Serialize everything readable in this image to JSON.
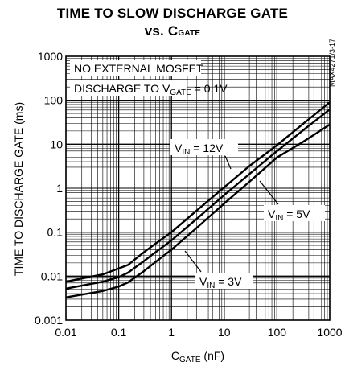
{
  "chart_data": {
    "type": "line",
    "title_line1": "TIME TO SLOW DISCHARGE GATE",
    "title_line2_prefix": "vs. C",
    "title_line2_sub": "GATE",
    "xlabel_main": "C",
    "xlabel_sub": "GATE",
    "xlabel_unit": " (nF)",
    "ylabel": "TIME TO DISCHARGE GATE (ms)",
    "xscale": "log",
    "yscale": "log",
    "xlim": [
      0.01,
      1000
    ],
    "ylim": [
      0.001,
      1000
    ],
    "grid": true,
    "x_tick_labels": [
      "0.01",
      "0.1",
      "1",
      "10",
      "100",
      "1000"
    ],
    "y_tick_labels": [
      "0.001",
      "0.01",
      "0.1",
      "1",
      "10",
      "100",
      "1000"
    ],
    "notes": [
      "NO EXTERNAL MOSFET",
      "DISCHARGE TO V",
      "GATE",
      " = 0.1V"
    ],
    "watermark": "MAX4271/3-17",
    "series": [
      {
        "name": "VIN = 12V",
        "label_main": "V",
        "label_sub": "IN",
        "label_rest": " = 12V",
        "x": [
          0.01,
          0.05,
          0.1,
          0.15,
          0.3,
          0.5,
          1,
          3,
          10,
          30,
          100,
          300,
          1000
        ],
        "y": [
          0.0075,
          0.011,
          0.015,
          0.018,
          0.035,
          0.055,
          0.1,
          0.31,
          1.05,
          3.2,
          9.5,
          28,
          90
        ]
      },
      {
        "name": "VIN = 5V",
        "label_main": "V",
        "label_sub": "IN",
        "label_rest": " = 5V",
        "x": [
          0.01,
          0.05,
          0.1,
          0.15,
          0.3,
          0.5,
          1,
          3,
          10,
          30,
          100,
          300,
          1000
        ],
        "y": [
          0.0052,
          0.0075,
          0.0095,
          0.012,
          0.022,
          0.035,
          0.065,
          0.2,
          0.7,
          2.1,
          7,
          20,
          62
        ]
      },
      {
        "name": "VIN = 3V",
        "label_main": "V",
        "label_sub": "IN",
        "label_rest": " = 3V",
        "x": [
          0.01,
          0.05,
          0.1,
          0.15,
          0.3,
          0.5,
          1,
          3,
          10,
          30,
          100,
          300,
          1000
        ],
        "y": [
          0.0033,
          0.0046,
          0.0058,
          0.0072,
          0.013,
          0.021,
          0.04,
          0.125,
          0.45,
          1.4,
          5,
          11,
          28
        ]
      }
    ]
  }
}
